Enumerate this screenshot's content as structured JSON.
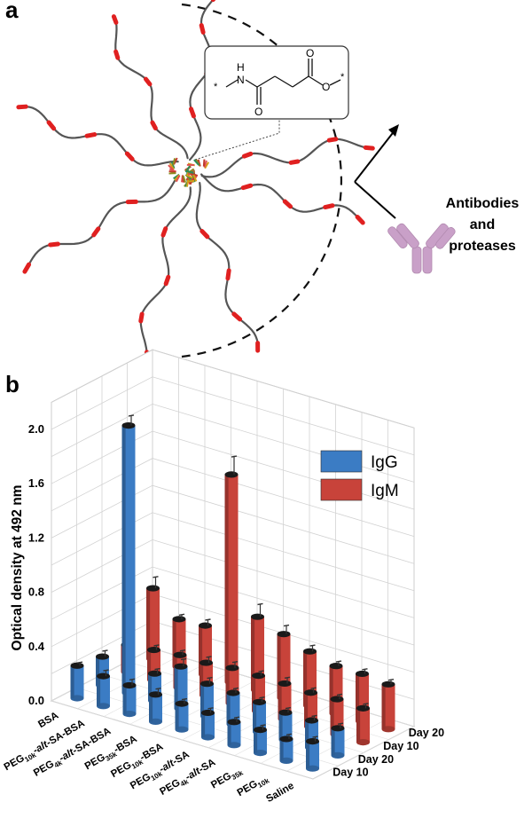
{
  "panel_a": {
    "label": "a",
    "antibody_text": [
      "Antibodies",
      "and",
      "proteases"
    ],
    "structure_atoms": {
      "h": "H",
      "n": "N",
      "o_top": "O",
      "o_bottom": "O",
      "o_ester": "O",
      "star_left": "*",
      "star_right": "*"
    }
  },
  "panel_b": {
    "label": "b"
  },
  "colors": {
    "igg": "#3b7cc4",
    "igm": "#c8433a",
    "polymer": "#555555",
    "pegunit": "#e02020",
    "antibody": "#c9a0c8"
  },
  "chart_data": {
    "type": "bar",
    "title": "",
    "ylabel": "Optical density at 492 nm",
    "ylim": [
      0,
      2.2
    ],
    "yticks": [
      "0.0",
      "0.4",
      "0.8",
      "1.2",
      "1.6",
      "2.0"
    ],
    "categories": [
      "BSA",
      "PEG10k-alt-SA-BSA",
      "PEG4k-alt-SA-BSA",
      "PEG35k-BSA",
      "PEG10k-BSA",
      "PEG10k-alt-SA",
      "PEG4k-alt-SA",
      "PEG35k",
      "PEG10k",
      "Saline"
    ],
    "category_labels": [
      {
        "parts": [
          [
            "BSA",
            ""
          ]
        ]
      },
      {
        "parts": [
          [
            "PEG",
            ""
          ],
          [
            "10k",
            "sub"
          ],
          [
            "-",
            ""
          ],
          [
            "alt",
            "i"
          ],
          [
            "-SA-BSA",
            ""
          ]
        ]
      },
      {
        "parts": [
          [
            "PEG",
            ""
          ],
          [
            "4k",
            "sub"
          ],
          [
            "-",
            ""
          ],
          [
            "alt",
            "i"
          ],
          [
            "-SA-BSA",
            ""
          ]
        ]
      },
      {
        "parts": [
          [
            "PEG",
            ""
          ],
          [
            "35k",
            "sub"
          ],
          [
            "-BSA",
            ""
          ]
        ]
      },
      {
        "parts": [
          [
            "PEG",
            ""
          ],
          [
            "10k",
            "sub"
          ],
          [
            "-BSA",
            ""
          ]
        ]
      },
      {
        "parts": [
          [
            "PEG",
            ""
          ],
          [
            "10k",
            "sub"
          ],
          [
            "-",
            ""
          ],
          [
            "alt",
            "i"
          ],
          [
            "-SA",
            ""
          ]
        ]
      },
      {
        "parts": [
          [
            "PEG",
            ""
          ],
          [
            "4k",
            "sub"
          ],
          [
            "-",
            ""
          ],
          [
            "alt",
            "i"
          ],
          [
            "-SA",
            ""
          ]
        ]
      },
      {
        "parts": [
          [
            "PEG",
            ""
          ],
          [
            "35k",
            "sub"
          ]
        ]
      },
      {
        "parts": [
          [
            "PEG",
            ""
          ],
          [
            "10k",
            "sub"
          ]
        ]
      },
      {
        "parts": [
          [
            "Saline",
            ""
          ]
        ]
      }
    ],
    "depth_labels": [
      "Day 10",
      "Day 20",
      "Day 10",
      "Day 20"
    ],
    "legend": [
      {
        "name": "IgG",
        "color": "#3b7cc4"
      },
      {
        "name": "IgM",
        "color": "#c8433a"
      }
    ],
    "series": [
      {
        "name": "IgG",
        "day": "Day 10",
        "values": [
          0.24,
          0.22,
          0.21,
          0.2,
          0.19,
          0.18,
          0.17,
          0.17,
          0.16,
          0.2
        ],
        "errors": [
          0.02,
          0.04,
          0.04,
          0.04,
          0.03,
          0.03,
          0.03,
          0.03,
          0.03,
          0.03
        ]
      },
      {
        "name": "IgG",
        "day": "Day 20",
        "values": [
          0.21,
          1.97,
          0.2,
          0.31,
          0.24,
          0.23,
          0.22,
          0.2,
          0.2,
          0.2
        ],
        "errors": [
          0.04,
          0.07,
          0.03,
          0.05,
          0.04,
          0.03,
          0.03,
          0.03,
          0.03,
          0.03
        ]
      },
      {
        "name": "IgM",
        "day": "Day 10",
        "values": [
          0.2,
          0.22,
          0.24,
          0.24,
          0.26,
          0.26,
          0.26,
          0.25,
          0.26,
          0.25
        ],
        "errors": [
          0.03,
          0.03,
          0.03,
          0.04,
          0.04,
          0.03,
          0.04,
          0.03,
          0.03,
          0.03
        ]
      },
      {
        "name": "IgM",
        "day": "Day 20",
        "values": [
          0.52,
          0.35,
          0.36,
          1.53,
          0.54,
          0.47,
          0.4,
          0.35,
          0.35,
          0.33
        ],
        "errors": [
          0.08,
          0.03,
          0.04,
          0.13,
          0.09,
          0.06,
          0.04,
          0.03,
          0.03,
          0.03
        ]
      }
    ]
  }
}
